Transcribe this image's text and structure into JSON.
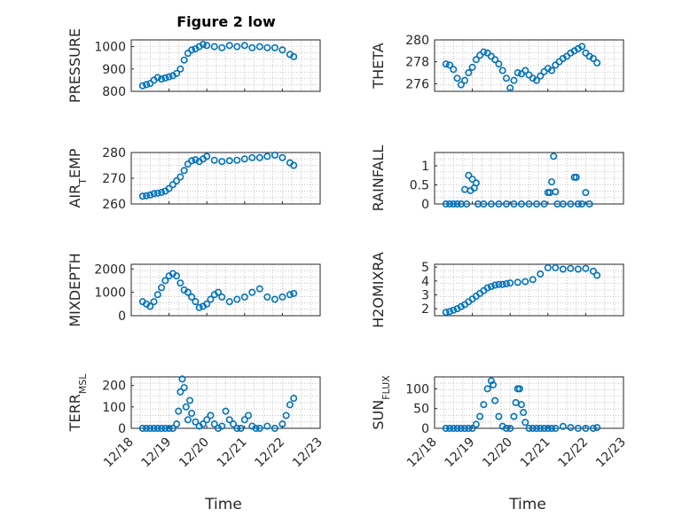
{
  "figure_title": "Figure 2 low",
  "x_axis_label": "Time",
  "colors": {
    "marker": "#0072BD",
    "axes": "#262626",
    "grid": "#b0b0b0"
  },
  "chart_data": [
    {
      "type": "scatter",
      "title": "Figure 2 low",
      "xlabel": "",
      "ylabel": "PRESSURE",
      "ylim": [
        800,
        1030
      ],
      "yticks": [
        800,
        900,
        1000
      ],
      "xlim": [
        18,
        23
      ],
      "xticks": [
        "12/18",
        "12/19",
        "12/20",
        "12/21",
        "12/22",
        "12/23"
      ],
      "x": [
        18.3,
        18.4,
        18.5,
        18.6,
        18.7,
        18.8,
        18.9,
        19.0,
        19.1,
        19.2,
        19.3,
        19.4,
        19.5,
        19.6,
        19.7,
        19.8,
        19.9,
        20.0,
        20.2,
        20.4,
        20.6,
        20.8,
        21.0,
        21.2,
        21.4,
        21.6,
        21.8,
        22.0,
        22.2,
        22.3
      ],
      "y": [
        825,
        830,
        835,
        850,
        862,
        855,
        860,
        865,
        870,
        880,
        900,
        940,
        970,
        985,
        990,
        1000,
        1010,
        1005,
        1000,
        995,
        1005,
        1000,
        1005,
        995,
        1000,
        995,
        995,
        985,
        965,
        955
      ]
    },
    {
      "type": "scatter",
      "xlabel": "",
      "ylabel": "THETA",
      "ylim": [
        275.3,
        280
      ],
      "yticks": [
        276,
        278,
        280
      ],
      "xlim": [
        18,
        23
      ],
      "xticks": [
        "12/18",
        "12/19",
        "12/20",
        "12/21",
        "12/22",
        "12/23"
      ],
      "x": [
        18.3,
        18.4,
        18.5,
        18.6,
        18.7,
        18.8,
        18.9,
        19.0,
        19.1,
        19.2,
        19.3,
        19.4,
        19.5,
        19.6,
        19.7,
        19.8,
        19.9,
        20.0,
        20.1,
        20.2,
        20.3,
        20.4,
        20.5,
        20.6,
        20.7,
        20.8,
        20.9,
        21.0,
        21.1,
        21.2,
        21.3,
        21.4,
        21.5,
        21.6,
        21.7,
        21.8,
        21.9,
        22.0,
        22.1,
        22.2,
        22.3
      ],
      "y": [
        277.8,
        277.7,
        277.3,
        276.5,
        275.9,
        276.3,
        277.0,
        277.5,
        278.2,
        278.6,
        278.9,
        278.8,
        278.5,
        278.2,
        277.8,
        277.2,
        276.5,
        275.6,
        276.3,
        277.0,
        276.9,
        277.2,
        276.8,
        276.5,
        276.3,
        276.7,
        277.1,
        277.4,
        277.2,
        277.7,
        278.0,
        278.3,
        278.5,
        278.8,
        279.0,
        279.2,
        279.4,
        278.8,
        278.5,
        278.3,
        277.9
      ]
    },
    {
      "type": "scatter",
      "xlabel": "",
      "ylabel": "AIR_T_EMP",
      "ylim": [
        260,
        280
      ],
      "yticks": [
        260,
        270,
        280
      ],
      "xlim": [
        18,
        23
      ],
      "xticks": [
        "12/18",
        "12/19",
        "12/20",
        "12/21",
        "12/22",
        "12/23"
      ],
      "x": [
        18.3,
        18.4,
        18.5,
        18.6,
        18.7,
        18.8,
        18.9,
        19.0,
        19.1,
        19.2,
        19.3,
        19.4,
        19.5,
        19.6,
        19.7,
        19.8,
        19.9,
        20.0,
        20.2,
        20.4,
        20.6,
        20.8,
        21.0,
        21.2,
        21.4,
        21.6,
        21.8,
        22.0,
        22.2,
        22.3
      ],
      "y": [
        263,
        263.2,
        263.5,
        264,
        264.2,
        264.5,
        265,
        266,
        267.5,
        269,
        270.5,
        273,
        275.5,
        276.8,
        277.2,
        276.5,
        277.5,
        278.5,
        277,
        276.5,
        276.8,
        277,
        277.5,
        278,
        278,
        278.5,
        279,
        278,
        276,
        275
      ]
    },
    {
      "type": "scatter",
      "xlabel": "",
      "ylabel": "RAINFALL",
      "ylim": [
        0,
        1.35
      ],
      "yticks": [
        0,
        0.5,
        1
      ],
      "xlim": [
        18,
        23
      ],
      "xticks": [
        "12/18",
        "12/19",
        "12/20",
        "12/21",
        "12/22",
        "12/23"
      ],
      "x": [
        18.3,
        18.4,
        18.5,
        18.6,
        18.7,
        18.8,
        18.85,
        18.9,
        18.95,
        19.0,
        19.05,
        19.1,
        19.15,
        19.3,
        19.5,
        19.7,
        19.9,
        20.1,
        20.3,
        20.5,
        20.7,
        20.9,
        21.0,
        21.05,
        21.1,
        21.15,
        21.2,
        21.25,
        21.4,
        21.6,
        21.7,
        21.75,
        21.8,
        21.9,
        22.0,
        22.1
      ],
      "y": [
        0,
        0,
        0,
        0,
        0,
        0.38,
        0,
        0.75,
        0.35,
        0.65,
        0.42,
        0.55,
        0,
        0,
        0,
        0,
        0,
        0,
        0,
        0,
        0,
        0,
        0.3,
        0.3,
        0.58,
        1.25,
        0.32,
        0,
        0,
        0,
        0.7,
        0.7,
        0,
        0,
        0.3,
        0
      ]
    },
    {
      "type": "scatter",
      "xlabel": "",
      "ylabel": "MIXDEPTH",
      "ylim": [
        0,
        2200
      ],
      "yticks": [
        0,
        1000,
        2000
      ],
      "xlim": [
        18,
        23
      ],
      "xticks": [
        "12/18",
        "12/19",
        "12/20",
        "12/21",
        "12/22",
        "12/23"
      ],
      "x": [
        18.3,
        18.4,
        18.5,
        18.6,
        18.7,
        18.8,
        18.9,
        19.0,
        19.1,
        19.2,
        19.3,
        19.4,
        19.5,
        19.6,
        19.7,
        19.8,
        19.9,
        20.0,
        20.1,
        20.2,
        20.3,
        20.4,
        20.6,
        20.8,
        21.0,
        21.2,
        21.4,
        21.6,
        21.8,
        22.0,
        22.2,
        22.3
      ],
      "y": [
        600,
        500,
        400,
        600,
        900,
        1200,
        1500,
        1700,
        1800,
        1700,
        1400,
        1100,
        1000,
        800,
        600,
        350,
        400,
        500,
        700,
        900,
        1000,
        800,
        600,
        700,
        800,
        1000,
        1150,
        800,
        700,
        800,
        900,
        950
      ]
    },
    {
      "type": "scatter",
      "xlabel": "",
      "ylabel": "H2OMIXRA",
      "ylim": [
        1.5,
        5.2
      ],
      "yticks": [
        2,
        3,
        4,
        5
      ],
      "xlim": [
        18,
        23
      ],
      "xticks": [
        "12/18",
        "12/19",
        "12/20",
        "12/21",
        "12/22",
        "12/23"
      ],
      "x": [
        18.3,
        18.4,
        18.5,
        18.6,
        18.7,
        18.8,
        18.9,
        19.0,
        19.1,
        19.2,
        19.3,
        19.4,
        19.5,
        19.6,
        19.7,
        19.8,
        19.9,
        20.0,
        20.2,
        20.4,
        20.6,
        20.8,
        21.0,
        21.2,
        21.4,
        21.6,
        21.8,
        22.0,
        22.2,
        22.3
      ],
      "y": [
        1.75,
        1.8,
        1.9,
        2.0,
        2.15,
        2.3,
        2.5,
        2.7,
        2.9,
        3.1,
        3.3,
        3.5,
        3.6,
        3.7,
        3.75,
        3.75,
        3.8,
        3.85,
        3.9,
        3.95,
        4.1,
        4.5,
        4.95,
        4.95,
        4.85,
        4.9,
        4.85,
        4.9,
        4.7,
        4.4
      ]
    },
    {
      "type": "scatter",
      "xlabel": "Time",
      "ylabel": "TERR_MSL",
      "ylim": [
        0,
        240
      ],
      "yticks": [
        0,
        100,
        200
      ],
      "xlim": [
        18,
        23
      ],
      "xticks": [
        "12/18",
        "12/19",
        "12/20",
        "12/21",
        "12/22",
        "12/23"
      ],
      "x": [
        18.3,
        18.4,
        18.5,
        18.6,
        18.7,
        18.8,
        18.9,
        19.0,
        19.1,
        19.2,
        19.25,
        19.3,
        19.35,
        19.4,
        19.45,
        19.5,
        19.55,
        19.6,
        19.7,
        19.8,
        19.9,
        20.0,
        20.1,
        20.2,
        20.3,
        20.4,
        20.5,
        20.6,
        20.7,
        20.8,
        20.9,
        21.0,
        21.1,
        21.2,
        21.3,
        21.4,
        21.6,
        21.8,
        22.0,
        22.1,
        22.2,
        22.3
      ],
      "y": [
        0,
        0,
        0,
        0,
        0,
        0,
        0,
        0,
        0,
        20,
        80,
        170,
        230,
        190,
        100,
        40,
        130,
        70,
        30,
        10,
        20,
        40,
        60,
        20,
        0,
        10,
        80,
        40,
        20,
        0,
        0,
        40,
        60,
        10,
        0,
        0,
        10,
        0,
        20,
        60,
        110,
        140
      ]
    },
    {
      "type": "scatter",
      "xlabel": "Time",
      "ylabel": "SUN_FLUX",
      "ylim": [
        0,
        130
      ],
      "yticks": [
        0,
        50,
        100
      ],
      "xlim": [
        18,
        23
      ],
      "xticks": [
        "12/18",
        "12/19",
        "12/20",
        "12/21",
        "12/22",
        "12/23"
      ],
      "x": [
        18.3,
        18.4,
        18.5,
        18.6,
        18.7,
        18.8,
        18.9,
        19.0,
        19.1,
        19.2,
        19.3,
        19.4,
        19.5,
        19.55,
        19.6,
        19.7,
        19.8,
        19.9,
        20.0,
        20.1,
        20.15,
        20.2,
        20.25,
        20.3,
        20.35,
        20.4,
        20.5,
        20.6,
        20.7,
        20.8,
        20.9,
        21.0,
        21.1,
        21.2,
        21.4,
        21.6,
        21.8,
        22.0,
        22.2,
        22.3
      ],
      "y": [
        0,
        0,
        0,
        0,
        0,
        0,
        0,
        0,
        10,
        30,
        60,
        100,
        120,
        110,
        70,
        30,
        5,
        0,
        0,
        30,
        65,
        100,
        100,
        60,
        40,
        15,
        0,
        0,
        0,
        0,
        0,
        0,
        0,
        0,
        5,
        2,
        0,
        0,
        0,
        2
      ]
    }
  ]
}
